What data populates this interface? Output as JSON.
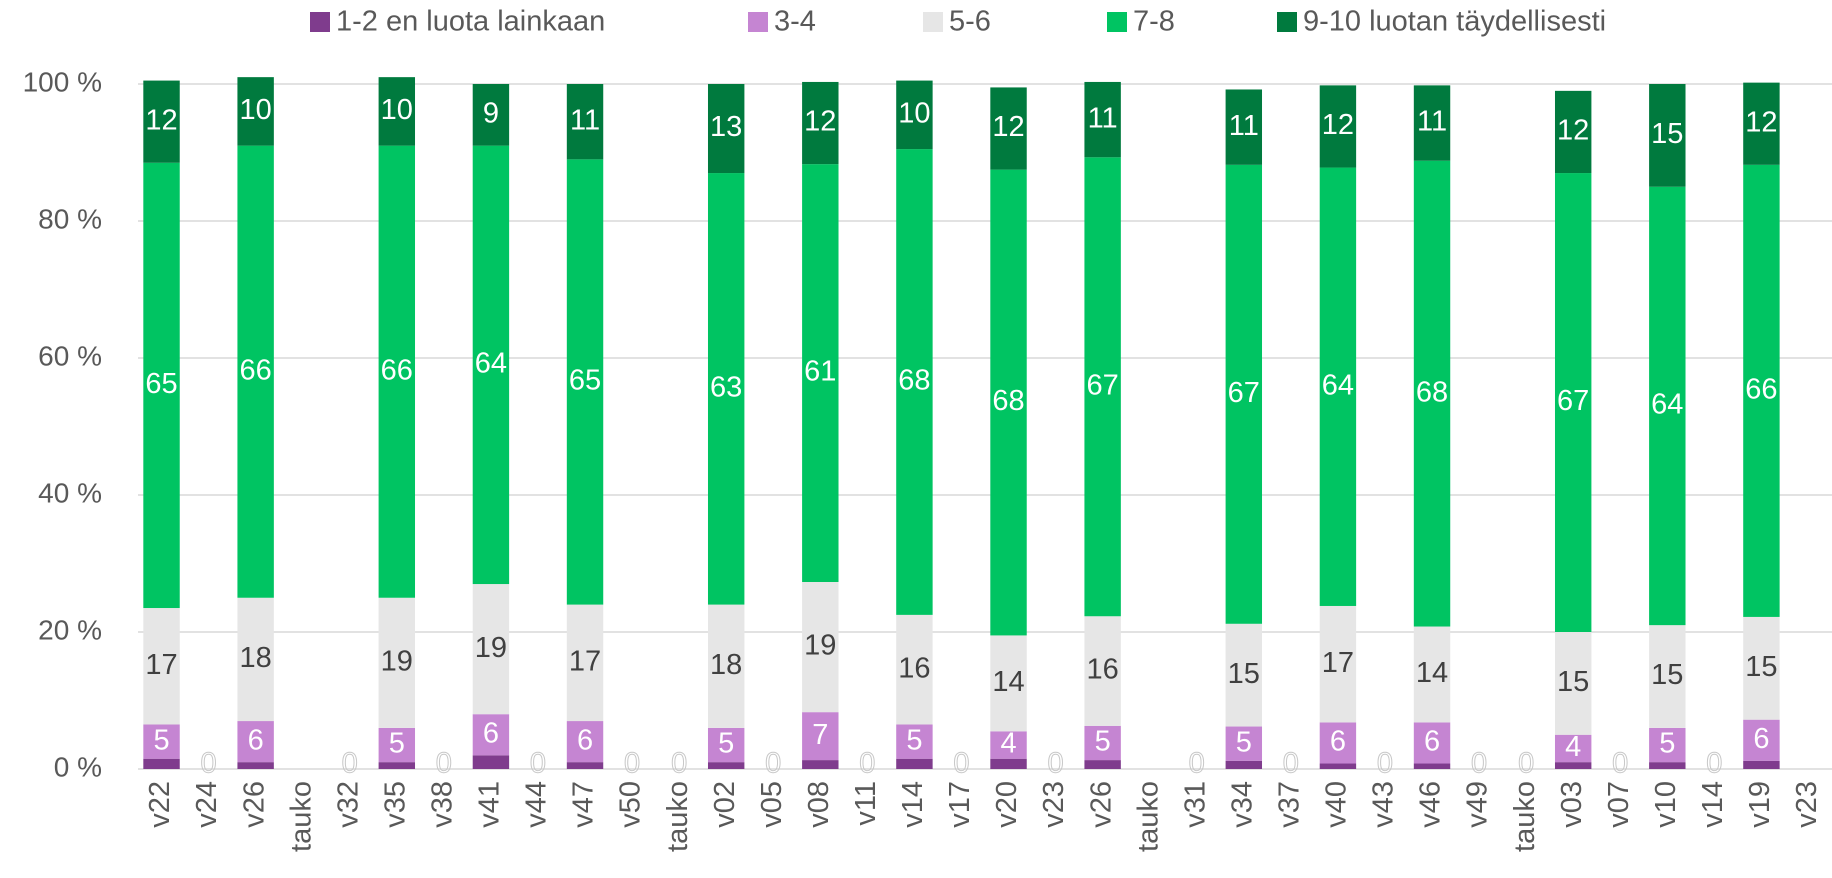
{
  "chart_data": {
    "type": "stacked_bar",
    "categories": [
      "v22",
      "v24",
      "v26",
      "tauko",
      "v32",
      "v35",
      "v38",
      "v41",
      "v44",
      "v47",
      "v50",
      "tauko",
      "v02",
      "v05",
      "v08",
      "v11",
      "v14",
      "v17",
      "v20",
      "v23",
      "v26",
      "tauko",
      "v31",
      "v34",
      "v37",
      "v40",
      "v43",
      "v46",
      "v49",
      "tauko",
      "v03",
      "v07",
      "v10",
      "v14",
      "v19",
      "v23"
    ],
    "series": [
      {
        "name": "1-2 en luota lainkaan",
        "color": "#7f3c8d",
        "values": [
          1.5,
          0,
          1,
          null,
          0,
          1,
          0,
          2,
          0,
          1,
          0,
          0,
          1,
          0,
          1.3,
          0,
          1.5,
          0,
          1.5,
          0,
          1.3,
          null,
          0,
          1.2,
          0,
          0.8,
          0,
          0.8,
          0,
          0,
          1,
          0,
          1,
          0,
          1.2,
          null
        ]
      },
      {
        "name": "3-4",
        "color": "#c585d2",
        "values": [
          5,
          null,
          6,
          null,
          null,
          5,
          null,
          6,
          null,
          6,
          null,
          null,
          5,
          null,
          7,
          null,
          5,
          null,
          4,
          null,
          5,
          null,
          null,
          5,
          null,
          6,
          null,
          6,
          null,
          null,
          4,
          null,
          5,
          null,
          6,
          null
        ]
      },
      {
        "name": "5-6",
        "color": "#e6e6e6",
        "values": [
          17,
          null,
          18,
          null,
          null,
          19,
          null,
          19,
          null,
          17,
          null,
          null,
          18,
          null,
          19,
          null,
          16,
          null,
          14,
          null,
          16,
          null,
          null,
          15,
          null,
          17,
          null,
          14,
          null,
          null,
          15,
          null,
          15,
          null,
          15,
          null
        ]
      },
      {
        "name": "7-8",
        "color": "#00c462",
        "values": [
          65,
          null,
          66,
          null,
          null,
          66,
          null,
          64,
          null,
          65,
          null,
          null,
          63,
          null,
          61,
          null,
          68,
          null,
          68,
          null,
          67,
          null,
          null,
          67,
          null,
          64,
          null,
          68,
          null,
          null,
          67,
          null,
          64,
          null,
          66,
          null
        ]
      },
      {
        "name": "9-10 luotan täydellisesti",
        "color": "#007a3e",
        "values": [
          12,
          null,
          10,
          null,
          null,
          10,
          null,
          9,
          null,
          11,
          null,
          null,
          13,
          null,
          12,
          null,
          10,
          null,
          12,
          null,
          11,
          null,
          null,
          11,
          null,
          12,
          null,
          11,
          null,
          null,
          12,
          null,
          15,
          null,
          12,
          null
        ]
      }
    ],
    "ylim": [
      0,
      100
    ],
    "yticks": [
      {
        "value": 0,
        "label": "0 %"
      },
      {
        "value": 20,
        "label": "20 %"
      },
      {
        "value": 40,
        "label": "40 %"
      },
      {
        "value": 60,
        "label": "60 %"
      },
      {
        "value": 80,
        "label": "80 %"
      },
      {
        "value": 100,
        "label": "100 %"
      }
    ],
    "grid": true,
    "legend": "top"
  }
}
